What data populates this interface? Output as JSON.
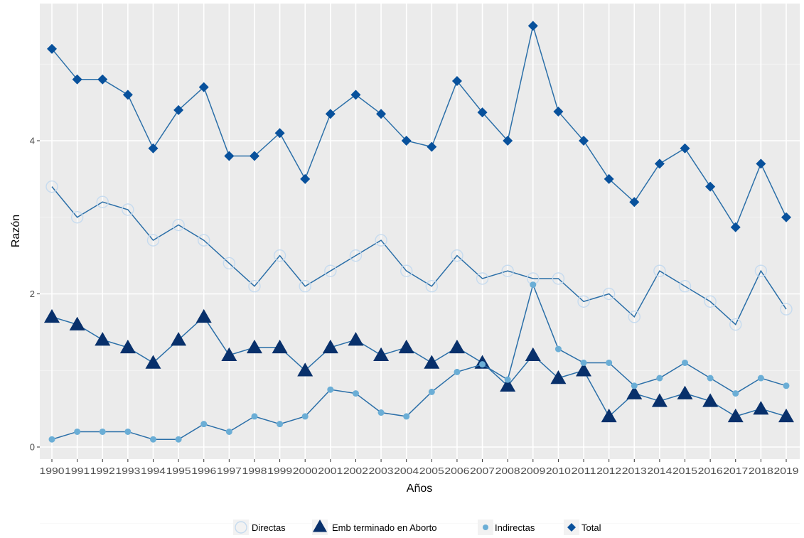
{
  "chart_data": {
    "type": "line",
    "title": "",
    "xlabel": "Años",
    "ylabel": "Razón",
    "x": [
      1990,
      1991,
      1992,
      1993,
      1994,
      1995,
      1996,
      1997,
      1998,
      1999,
      2000,
      2001,
      2002,
      2003,
      2004,
      2005,
      2006,
      2007,
      2008,
      2009,
      2010,
      2011,
      2012,
      2013,
      2014,
      2015,
      2016,
      2017,
      2018,
      2019
    ],
    "x_tick_labels": [
      "1990",
      "1991",
      "1992",
      "1993",
      "1994",
      "1995",
      "1996",
      "1997",
      "1998",
      "1999",
      "2000",
      "2001",
      "2002",
      "2003",
      "2004",
      "2005",
      "2006",
      "2007",
      "2008",
      "2009",
      "2010",
      "2011",
      "2012",
      "2013",
      "2014",
      "2015",
      "2016",
      "2017",
      "2018",
      "2019"
    ],
    "ylim": [
      -0.2,
      5.55
    ],
    "y_ticks": [
      0,
      2,
      4
    ],
    "y_tick_labels": [
      "0",
      "2",
      "4"
    ],
    "grid": true,
    "legend_position": "bottom",
    "series": [
      {
        "name": "Directas",
        "marker": "open-circle",
        "color": "#c6dbef",
        "values": [
          3.4,
          3.0,
          3.2,
          3.1,
          2.7,
          2.9,
          2.7,
          2.4,
          2.1,
          2.5,
          2.1,
          2.3,
          2.5,
          2.7,
          2.3,
          2.1,
          2.5,
          2.2,
          2.3,
          2.2,
          2.2,
          1.9,
          2.0,
          1.7,
          2.3,
          2.1,
          1.9,
          1.6,
          2.3,
          1.8
        ]
      },
      {
        "name": "Emb terminado en Aborto",
        "marker": "triangle",
        "color": "#08306b",
        "values": [
          1.7,
          1.6,
          1.4,
          1.3,
          1.1,
          1.4,
          1.7,
          1.2,
          1.3,
          1.3,
          1.0,
          1.3,
          1.4,
          1.2,
          1.3,
          1.1,
          1.3,
          1.1,
          0.8,
          1.2,
          0.9,
          1.0,
          0.4,
          0.7,
          0.6,
          0.7,
          0.6,
          0.4,
          0.5,
          0.4
        ]
      },
      {
        "name": "Indirectas",
        "marker": "small-dot",
        "color": "#6baed6",
        "values": [
          0.1,
          0.2,
          0.2,
          0.2,
          0.1,
          0.1,
          0.3,
          0.2,
          0.4,
          0.3,
          0.4,
          0.75,
          0.7,
          0.45,
          0.4,
          0.72,
          0.98,
          1.08,
          0.88,
          2.12,
          1.28,
          1.1,
          1.1,
          0.8,
          0.9,
          1.1,
          0.9,
          0.7,
          0.9,
          0.8
        ]
      },
      {
        "name": "Total",
        "marker": "diamond",
        "color": "#08519c",
        "values": [
          5.2,
          4.8,
          4.8,
          4.6,
          3.9,
          4.4,
          4.7,
          3.8,
          3.8,
          4.1,
          3.5,
          4.35,
          4.6,
          4.35,
          4.0,
          3.92,
          4.78,
          4.37,
          4.0,
          5.5,
          4.38,
          4.0,
          3.5,
          3.2,
          3.7,
          3.9,
          3.4,
          2.87,
          3.7,
          3.0
        ]
      }
    ]
  }
}
